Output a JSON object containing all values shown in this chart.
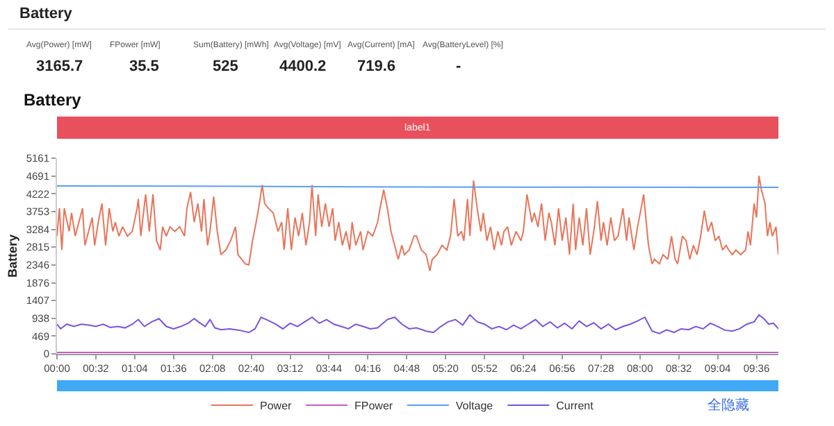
{
  "chart_data": {
    "type": "line",
    "title": "Battery",
    "ylabel": "Battery",
    "annotations": [
      "Battery",
      "Avg(Power) [mW]",
      "3165.7",
      "FPower [mW]",
      "35.5",
      "Sum(Battery) [mWh]",
      "525",
      "Avg(Voltage) [mV]",
      "4400.2",
      "Avg(Current) [mA]",
      "719.6",
      "Avg(BatteryLevel) [%]",
      "-",
      "label1",
      "全隐藏"
    ],
    "xlim": [
      0,
      594
    ],
    "xticks": [
      {
        "value": 0,
        "label": "00:00"
      },
      {
        "value": 32,
        "label": "00:32"
      },
      {
        "value": 64,
        "label": "01:04"
      },
      {
        "value": 96,
        "label": "01:36"
      },
      {
        "value": 128,
        "label": "02:08"
      },
      {
        "value": 160,
        "label": "02:40"
      },
      {
        "value": 192,
        "label": "03:12"
      },
      {
        "value": 224,
        "label": "03:44"
      },
      {
        "value": 256,
        "label": "04:16"
      },
      {
        "value": 288,
        "label": "04:48"
      },
      {
        "value": 320,
        "label": "05:20"
      },
      {
        "value": 352,
        "label": "05:52"
      },
      {
        "value": 384,
        "label": "06:24"
      },
      {
        "value": 416,
        "label": "06:56"
      },
      {
        "value": 448,
        "label": "07:28"
      },
      {
        "value": 480,
        "label": "08:00"
      },
      {
        "value": 512,
        "label": "08:32"
      },
      {
        "value": 544,
        "label": "09:04"
      },
      {
        "value": 576,
        "label": "09:36"
      }
    ],
    "ylim": [
      0,
      5161
    ],
    "yticks": [
      0,
      469,
      938,
      1407,
      1876,
      2346,
      2815,
      3284,
      3753,
      4222,
      4691,
      5161
    ],
    "grid": false,
    "legend": "bottom",
    "series": [
      {
        "name": "Power",
        "color": "#e8745a",
        "x": [
          0,
          2,
          4,
          6,
          10,
          12,
          15,
          18,
          21,
          23,
          26,
          29,
          31,
          34,
          37,
          40,
          43,
          46,
          48,
          51,
          54,
          58,
          62,
          66,
          67,
          69,
          73,
          76,
          79,
          82,
          85,
          87,
          90,
          93,
          97,
          101,
          105,
          107,
          110,
          113,
          116,
          119,
          121,
          124,
          126,
          129,
          132,
          135,
          139,
          143,
          147,
          149,
          152,
          155,
          158,
          161,
          164,
          166,
          169,
          171,
          174,
          178,
          182,
          185,
          187,
          190,
          193,
          196,
          199,
          202,
          205,
          208,
          210,
          213,
          215,
          218,
          221,
          224,
          227,
          229,
          232,
          235,
          238,
          241,
          243,
          246,
          250,
          252,
          256,
          260,
          264,
          266,
          269,
          272,
          275,
          278,
          281,
          284,
          286,
          290,
          294,
          296,
          300,
          304,
          307,
          309,
          313,
          317,
          321,
          324,
          327,
          330,
          333,
          335,
          338,
          340,
          343,
          346,
          349,
          351,
          354,
          357,
          360,
          363,
          366,
          368,
          371,
          374,
          378,
          382,
          384,
          387,
          391,
          393,
          396,
          399,
          402,
          405,
          407,
          410,
          413,
          416,
          419,
          422,
          425,
          427,
          430,
          433,
          436,
          439,
          442,
          445,
          448,
          450,
          453,
          456,
          459,
          462,
          466,
          469,
          471,
          475,
          478,
          481,
          483,
          487,
          490,
          492,
          496,
          499,
          503,
          506,
          509,
          511,
          515,
          518,
          521,
          524,
          527,
          530,
          533,
          536,
          539,
          542,
          545,
          548,
          551,
          553,
          556,
          559,
          563,
          567,
          569,
          571,
          574,
          576,
          578,
          580,
          583,
          585,
          587,
          589,
          592,
          594
        ],
        "values": [
          3106,
          3840,
          2740,
          3840,
          3229,
          3718,
          3106,
          3473,
          3840,
          2862,
          3229,
          3596,
          2862,
          3473,
          3963,
          2862,
          3840,
          3229,
          3473,
          3106,
          3351,
          3106,
          3229,
          3840,
          4085,
          3106,
          4207,
          3229,
          4207,
          2984,
          2740,
          3351,
          3106,
          3351,
          3229,
          3351,
          3106,
          3840,
          4268,
          3473,
          3963,
          3229,
          4085,
          2862,
          3229,
          4146,
          3229,
          2617,
          2740,
          2984,
          3351,
          2617,
          2495,
          2373,
          2348,
          2984,
          3473,
          3840,
          4452,
          3963,
          3840,
          3718,
          3229,
          3473,
          2740,
          3840,
          2740,
          3596,
          3106,
          3718,
          2862,
          3473,
          4452,
          3106,
          4207,
          3351,
          3963,
          3351,
          3840,
          2984,
          3473,
          2862,
          3229,
          2740,
          3473,
          2862,
          3229,
          2740,
          3229,
          3106,
          3473,
          3840,
          4329,
          3840,
          3229,
          2862,
          2495,
          2862,
          2617,
          2740,
          3106,
          3106,
          2740,
          2617,
          2189,
          2495,
          2617,
          2862,
          2740,
          3106,
          4085,
          3106,
          3229,
          2984,
          4085,
          3106,
          4574,
          3840,
          3229,
          3718,
          2984,
          3351,
          2740,
          3229,
          2862,
          3229,
          3351,
          2862,
          3229,
          2984,
          3229,
          4207,
          3473,
          3718,
          3351,
          3963,
          2984,
          3718,
          3473,
          2862,
          3840,
          2984,
          3596,
          2617,
          3963,
          2740,
          3596,
          2862,
          3840,
          2617,
          3229,
          4024,
          2984,
          3473,
          2862,
          3596,
          2984,
          3106,
          3840,
          2984,
          3596,
          2740,
          3351,
          3840,
          4207,
          2862,
          2373,
          2495,
          2373,
          2617,
          2495,
          3106,
          2495,
          2373,
          3106,
          2984,
          2495,
          2862,
          2617,
          3106,
          3779,
          3229,
          3473,
          2984,
          3106,
          2740,
          2862,
          2740,
          2617,
          2740,
          2617,
          2740,
          3229,
          2862,
          3963,
          3596,
          4696,
          4329,
          3963,
          3106,
          3473,
          3106,
          3351,
          2617
        ]
      },
      {
        "name": "FPower",
        "color": "#c55bc8",
        "x": [
          0,
          594
        ],
        "values": [
          35,
          35
        ]
      },
      {
        "name": "Voltage",
        "color": "#5b9ff0",
        "x": [
          0,
          150,
          300,
          450,
          594
        ],
        "values": [
          4427,
          4420,
          4400,
          4395,
          4391
        ]
      },
      {
        "name": "Current",
        "color": "#7a52e0",
        "x": [
          0,
          3,
          8,
          14,
          20,
          26,
          32,
          38,
          44,
          50,
          56,
          62,
          67,
          72,
          78,
          84,
          90,
          96,
          102,
          108,
          113,
          118,
          122,
          126,
          130,
          135,
          142,
          150,
          158,
          163,
          168,
          174,
          180,
          186,
          192,
          198,
          204,
          210,
          216,
          222,
          228,
          234,
          240,
          246,
          252,
          258,
          264,
          272,
          278,
          284,
          290,
          296,
          304,
          310,
          316,
          322,
          328,
          334,
          340,
          346,
          352,
          358,
          364,
          370,
          376,
          382,
          388,
          394,
          400,
          406,
          412,
          418,
          424,
          430,
          436,
          442,
          448,
          454,
          460,
          466,
          472,
          478,
          484,
          490,
          496,
          502,
          508,
          514,
          520,
          526,
          532,
          538,
          544,
          550,
          556,
          562,
          568,
          574,
          578,
          582,
          586,
          590,
          594
        ],
        "values": [
          783,
          660,
          783,
          722,
          783,
          758,
          722,
          783,
          697,
          722,
          685,
          783,
          905,
          722,
          844,
          929,
          722,
          660,
          722,
          807,
          929,
          807,
          722,
          905,
          685,
          636,
          660,
          624,
          563,
          660,
          966,
          881,
          783,
          660,
          807,
          722,
          844,
          966,
          807,
          905,
          783,
          722,
          660,
          783,
          722,
          660,
          685,
          905,
          966,
          783,
          660,
          685,
          600,
          563,
          722,
          844,
          905,
          758,
          1027,
          844,
          783,
          660,
          722,
          636,
          758,
          660,
          783,
          905,
          722,
          844,
          685,
          807,
          660,
          868,
          722,
          819,
          660,
          783,
          636,
          722,
          783,
          868,
          966,
          600,
          538,
          636,
          563,
          660,
          636,
          722,
          660,
          807,
          722,
          624,
          600,
          660,
          783,
          844,
          1027,
          929,
          783,
          807,
          660
        ]
      }
    ]
  }
}
